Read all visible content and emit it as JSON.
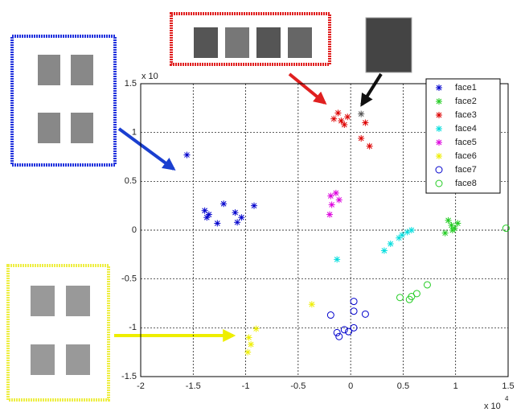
{
  "chart_data": {
    "type": "scatter",
    "x_scale_label": "x 10",
    "x_scale_exponent": "4",
    "y_scale_label": "x 10",
    "xlim": [
      -2,
      1.5
    ],
    "xticks": [
      -2,
      -1.5,
      -1,
      -0.5,
      0,
      0.5,
      1,
      1.5
    ],
    "ylim": [
      -1.5,
      1.5
    ],
    "yticks": [
      -1.5,
      -1,
      -0.5,
      0,
      0.5,
      1,
      1.5
    ],
    "grid": true,
    "legend": "top-right",
    "series": [
      {
        "name": "face1",
        "color": "#0000cc",
        "marker": "star",
        "x": [
          -1.56,
          -1.39,
          -1.35,
          -1.37,
          -1.21,
          -1.1,
          -1.08,
          -1.04,
          -0.92,
          -1.27
        ],
        "y": [
          0.77,
          0.2,
          0.16,
          0.13,
          0.27,
          0.18,
          0.08,
          0.13,
          0.25,
          0.07
        ]
      },
      {
        "name": "face2",
        "color": "#22cc22",
        "marker": "star",
        "x": [
          0.93,
          0.96,
          0.99,
          0.9,
          1.02,
          0.97
        ],
        "y": [
          0.1,
          0.05,
          0.02,
          -0.03,
          0.07,
          0
        ]
      },
      {
        "name": "face3",
        "color": "#dd0000",
        "marker": "star",
        "x": [
          -0.12,
          -0.09,
          -0.03,
          -0.06,
          0.1,
          0.14,
          0.18,
          -0.16
        ],
        "y": [
          1.2,
          1.12,
          1.16,
          1.08,
          0.94,
          1.1,
          0.86,
          1.14
        ]
      },
      {
        "name": "face4",
        "color": "#00dddd",
        "marker": "star",
        "x": [
          -0.13,
          0.32,
          0.38,
          0.46,
          0.49,
          0.54,
          0.58
        ],
        "y": [
          -0.3,
          -0.21,
          -0.14,
          -0.08,
          -0.05,
          -0.02,
          0
        ]
      },
      {
        "name": "face5",
        "color": "#dd00dd",
        "marker": "star",
        "x": [
          -0.2,
          -0.19,
          -0.14,
          -0.11,
          -0.18
        ],
        "y": [
          0.16,
          0.35,
          0.38,
          0.31,
          0.26
        ]
      },
      {
        "name": "face6",
        "color": "#eeee00",
        "marker": "star",
        "x": [
          -0.37,
          -0.98,
          -0.95,
          -0.9,
          -0.97
        ],
        "y": [
          -0.76,
          -1.25,
          -1.17,
          -1.01,
          -1.1
        ]
      },
      {
        "name": "face7",
        "color": "#0000cc",
        "marker": "circle",
        "x": [
          -0.19,
          -0.11,
          -0.06,
          -0.02,
          0.03,
          0.03,
          0.14,
          0.03,
          -0.13
        ],
        "y": [
          -0.87,
          -1.09,
          -1.02,
          -1.04,
          -0.73,
          -0.83,
          -0.86,
          -1.0,
          -1.05
        ]
      },
      {
        "name": "face8",
        "color": "#22cc22",
        "marker": "circle",
        "x": [
          0.47,
          0.58,
          0.63,
          0.73,
          1.48,
          0.56
        ],
        "y": [
          -0.69,
          -0.68,
          -0.65,
          -0.56,
          0.02,
          -0.71
        ]
      }
    ],
    "highlight_point": {
      "color": "#555555",
      "marker": "star",
      "x": 0.1,
      "y": 1.19
    }
  }
}
